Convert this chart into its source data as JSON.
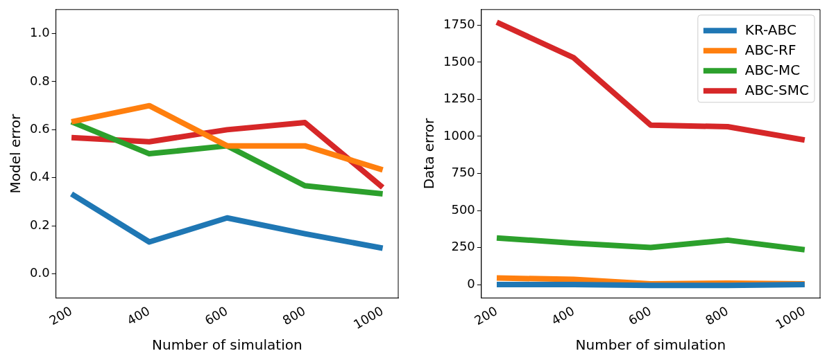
{
  "chart_data": [
    {
      "type": "line",
      "xlabel": "Number of simulation",
      "ylabel": "Model error",
      "x": [
        200,
        400,
        600,
        800,
        1000
      ],
      "xlim": [
        160,
        1040
      ],
      "xticks": [
        200,
        400,
        600,
        800,
        1000
      ],
      "ylim": [
        -0.1,
        1.1
      ],
      "yticks": [
        {
          "value": 0,
          "label": "0.0"
        },
        0.2,
        0.4,
        0.6,
        0.8,
        {
          "value": 1,
          "label": "1.0"
        }
      ],
      "series": [
        {
          "color": "#1f77b4",
          "values": [
            0.333,
            0.133,
            0.233,
            0.167,
            0.107
          ]
        },
        {
          "color": "#ff7f0e",
          "values": [
            0.633,
            0.7,
            0.533,
            0.533,
            0.433
          ]
        },
        {
          "color": "#2ca02c",
          "values": [
            0.633,
            0.5,
            0.533,
            0.367,
            0.333
          ]
        },
        {
          "color": "#d62728",
          "values": [
            0.567,
            0.55,
            0.6,
            0.63,
            0.36
          ]
        }
      ]
    },
    {
      "type": "line",
      "xlabel": "Number of simulation",
      "ylabel": "Data error",
      "x": [
        200,
        400,
        600,
        800,
        1000
      ],
      "xlim": [
        160,
        1040
      ],
      "xticks": [
        200,
        400,
        600,
        800,
        1000
      ],
      "ylim": [
        -90,
        1855
      ],
      "yticks": [
        0,
        250,
        500,
        750,
        1000,
        1250,
        1500,
        1750
      ],
      "legend": "top right",
      "series": [
        {
          "name": "KR-ABC",
          "color": "#1f77b4",
          "values": [
            0,
            0,
            -5,
            -5,
            0
          ]
        },
        {
          "name": "ABC-RF",
          "color": "#ff7f0e",
          "values": [
            45,
            35,
            5,
            10,
            5
          ]
        },
        {
          "name": "ABC-MC",
          "color": "#2ca02c",
          "values": [
            315,
            280,
            250,
            300,
            235
          ]
        },
        {
          "name": "ABC-SMC",
          "color": "#d62728",
          "values": [
            1770,
            1530,
            1075,
            1065,
            975
          ]
        }
      ]
    }
  ]
}
